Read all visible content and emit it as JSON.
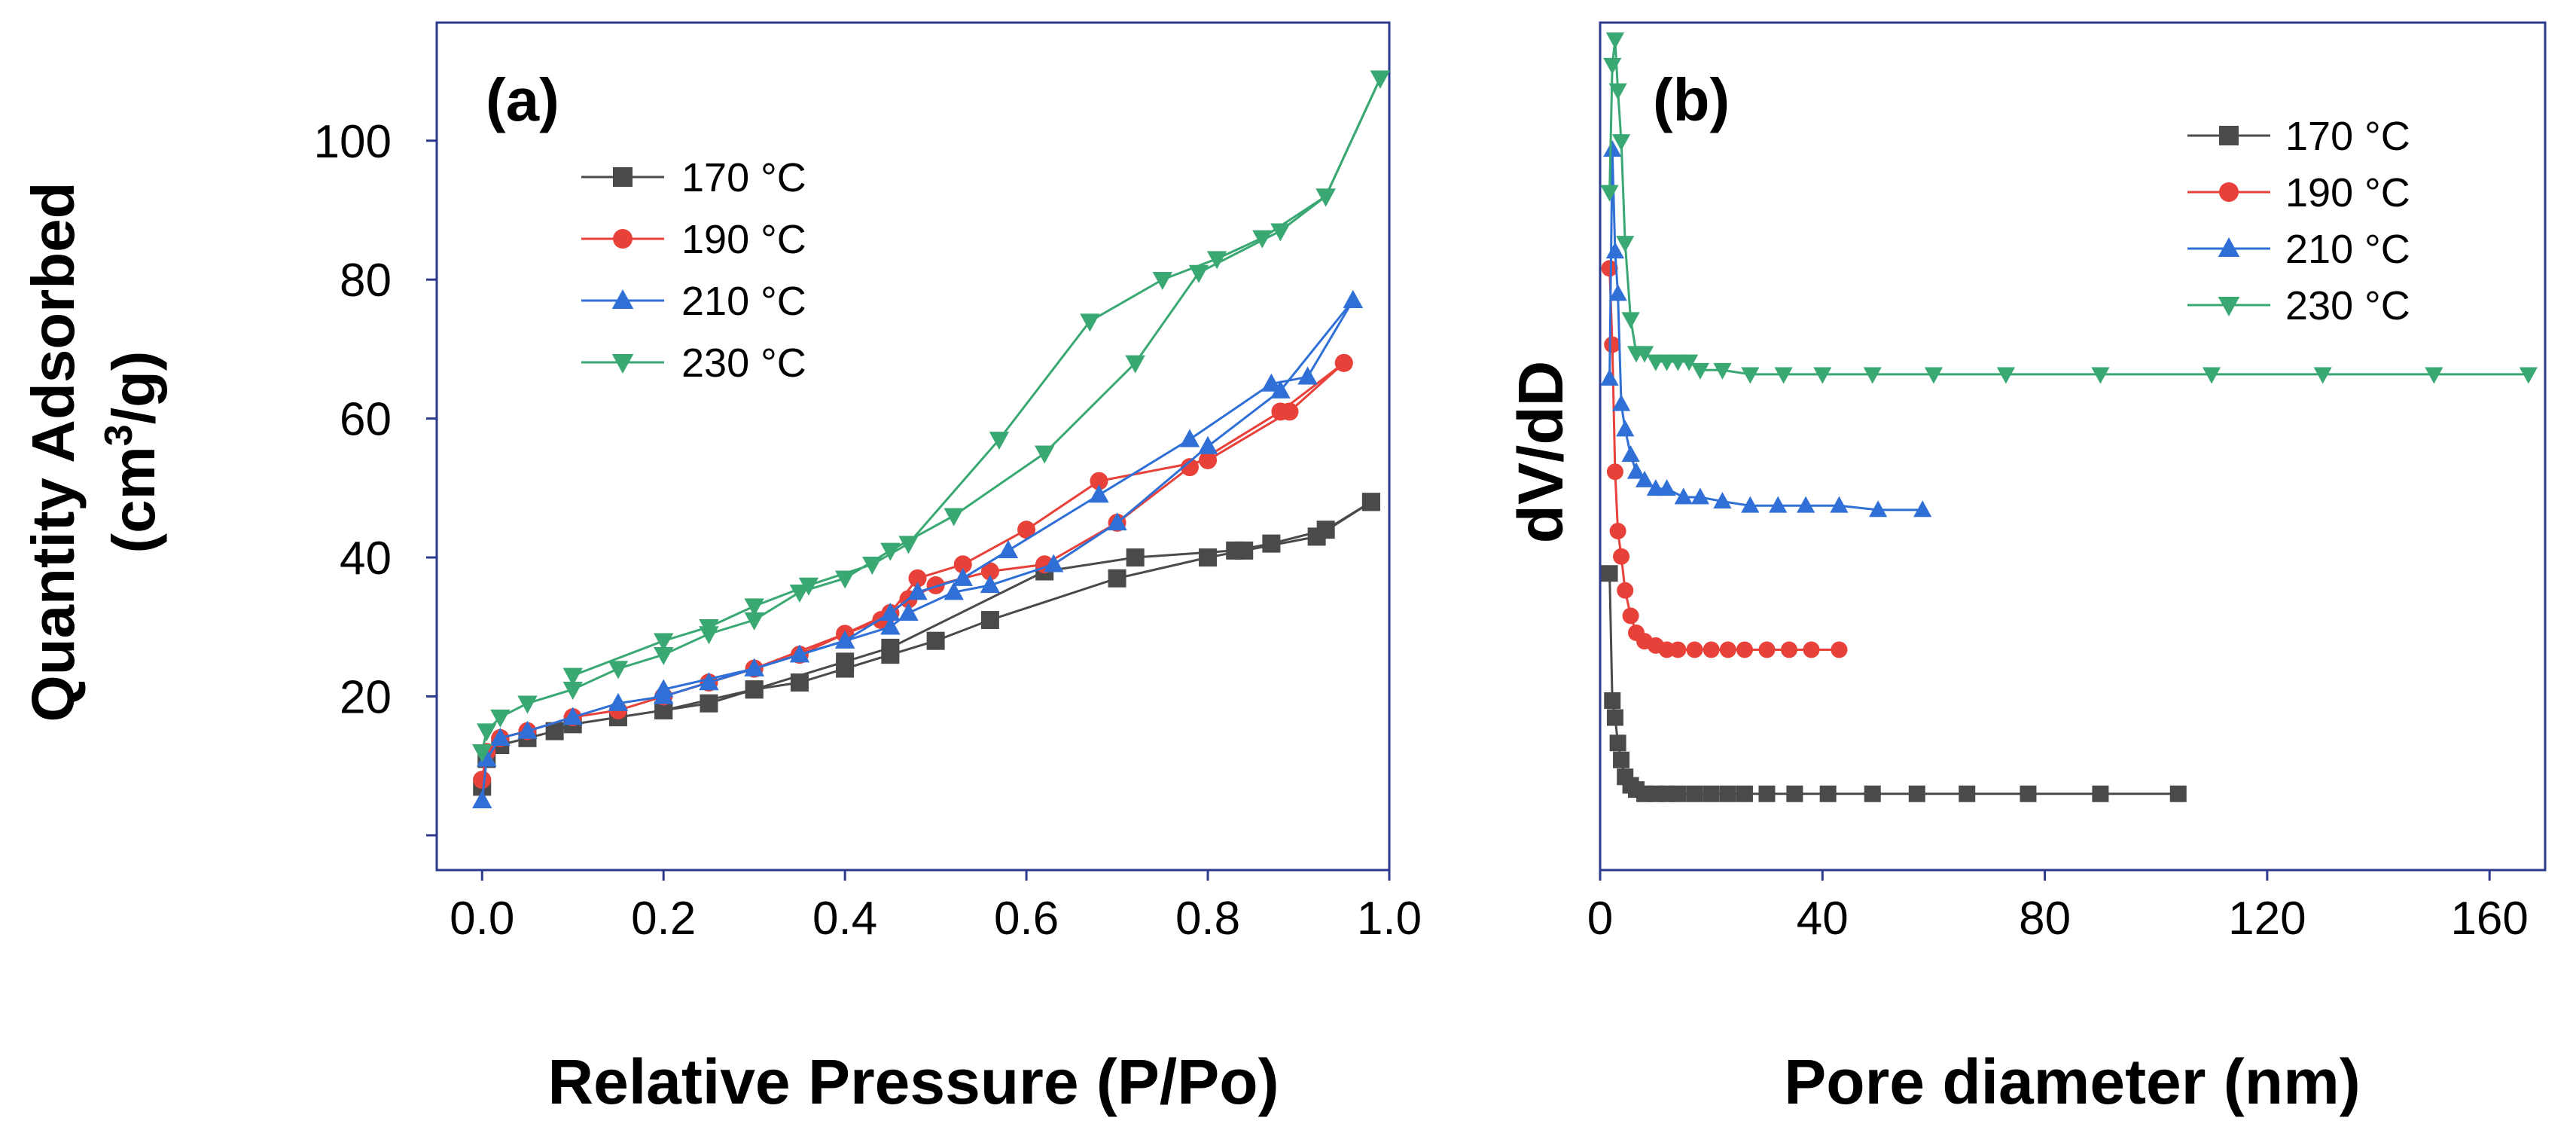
{
  "chart_data": [
    {
      "type": "line",
      "panel_label": "(a)",
      "xlabel": "Relative Pressure (P/Po)",
      "ylabel_line1": "Quantity Adsorbed",
      "ylabel_line2_base": "(cm",
      "ylabel_line2_sup": "3",
      "ylabel_line2_tail": "/g)",
      "xlim": [
        -0.05,
        1.0
      ],
      "ylim": [
        -5,
        117
      ],
      "xticks": [
        0.0,
        0.2,
        0.4,
        0.6,
        0.8,
        1.0
      ],
      "xtick_labels": [
        "0.0",
        "0.2",
        "0.4",
        "0.6",
        "0.8",
        "1.0"
      ],
      "yticks": [
        0,
        20,
        40,
        60,
        80,
        100
      ],
      "ytick_labels": [
        "",
        "20",
        "40",
        "60",
        "80",
        "100"
      ],
      "legend_position": "top-left",
      "series": [
        {
          "name": "170 °C",
          "color": "#4a4a4a",
          "marker": "square",
          "adsorption": [
            [
              0.0,
              7
            ],
            [
              0.005,
              11
            ],
            [
              0.02,
              13
            ],
            [
              0.05,
              14
            ],
            [
              0.08,
              15
            ],
            [
              0.1,
              16
            ],
            [
              0.15,
              17
            ],
            [
              0.2,
              18
            ],
            [
              0.25,
              19
            ],
            [
              0.3,
              21
            ],
            [
              0.35,
              22
            ],
            [
              0.4,
              24
            ],
            [
              0.45,
              26
            ],
            [
              0.5,
              28
            ],
            [
              0.56,
              31
            ],
            [
              0.7,
              37
            ],
            [
              0.8,
              40
            ],
            [
              0.84,
              41
            ],
            [
              0.92,
              43
            ],
            [
              0.98,
              48
            ]
          ],
          "desorption": [
            [
              0.98,
              48
            ],
            [
              0.93,
              44
            ],
            [
              0.87,
              42
            ],
            [
              0.83,
              41
            ],
            [
              0.72,
              40
            ],
            [
              0.62,
              38
            ],
            [
              0.45,
              27
            ],
            [
              0.4,
              25
            ],
            [
              0.3,
              21
            ],
            [
              0.2,
              18
            ]
          ]
        },
        {
          "name": "190 °C",
          "color": "#e8413a",
          "marker": "circle",
          "adsorption": [
            [
              0.0,
              8
            ],
            [
              0.005,
              12
            ],
            [
              0.02,
              14
            ],
            [
              0.05,
              15
            ],
            [
              0.1,
              17
            ],
            [
              0.15,
              18
            ],
            [
              0.2,
              20
            ],
            [
              0.25,
              22
            ],
            [
              0.3,
              24
            ],
            [
              0.35,
              26
            ],
            [
              0.4,
              29
            ],
            [
              0.44,
              31
            ],
            [
              0.47,
              34
            ],
            [
              0.5,
              36
            ],
            [
              0.56,
              38
            ],
            [
              0.62,
              39
            ],
            [
              0.7,
              45
            ],
            [
              0.78,
              53
            ],
            [
              0.88,
              61
            ],
            [
              0.95,
              68
            ]
          ],
          "desorption": [
            [
              0.95,
              68
            ],
            [
              0.89,
              61
            ],
            [
              0.8,
              54
            ],
            [
              0.68,
              51
            ],
            [
              0.6,
              44
            ],
            [
              0.53,
              39
            ],
            [
              0.48,
              37
            ],
            [
              0.45,
              32
            ],
            [
              0.4,
              29
            ],
            [
              0.3,
              24
            ],
            [
              0.2,
              20
            ]
          ]
        },
        {
          "name": "210 °C",
          "color": "#2f6fd6",
          "marker": "triangle-up",
          "adsorption": [
            [
              0.0,
              5
            ],
            [
              0.005,
              11
            ],
            [
              0.02,
              14
            ],
            [
              0.05,
              15
            ],
            [
              0.1,
              17
            ],
            [
              0.15,
              19
            ],
            [
              0.2,
              20
            ],
            [
              0.25,
              22
            ],
            [
              0.3,
              24
            ],
            [
              0.35,
              26
            ],
            [
              0.4,
              28
            ],
            [
              0.45,
              30
            ],
            [
              0.47,
              32
            ],
            [
              0.52,
              35
            ],
            [
              0.56,
              36
            ],
            [
              0.63,
              39
            ],
            [
              0.7,
              45
            ],
            [
              0.8,
              56
            ],
            [
              0.88,
              64
            ],
            [
              0.96,
              77
            ]
          ],
          "desorption": [
            [
              0.96,
              77
            ],
            [
              0.91,
              66
            ],
            [
              0.87,
              65
            ],
            [
              0.78,
              57
            ],
            [
              0.68,
              49
            ],
            [
              0.58,
              41
            ],
            [
              0.53,
              37
            ],
            [
              0.48,
              35
            ],
            [
              0.45,
              32
            ],
            [
              0.4,
              28
            ],
            [
              0.3,
              24
            ],
            [
              0.2,
              21
            ]
          ]
        },
        {
          "name": "230 °C",
          "color": "#3aa872",
          "marker": "triangle-down",
          "adsorption": [
            [
              0.0,
              12
            ],
            [
              0.005,
              15
            ],
            [
              0.02,
              17
            ],
            [
              0.05,
              19
            ],
            [
              0.1,
              21
            ],
            [
              0.15,
              24
            ],
            [
              0.2,
              26
            ],
            [
              0.25,
              29
            ],
            [
              0.3,
              31
            ],
            [
              0.35,
              35
            ],
            [
              0.4,
              37
            ],
            [
              0.45,
              41
            ],
            [
              0.52,
              46
            ],
            [
              0.62,
              55
            ],
            [
              0.72,
              68
            ],
            [
              0.79,
              81
            ],
            [
              0.88,
              87
            ],
            [
              0.93,
              92
            ],
            [
              0.99,
              109
            ]
          ],
          "desorption": [
            [
              0.99,
              109
            ],
            [
              0.93,
              92
            ],
            [
              0.86,
              86
            ],
            [
              0.81,
              83
            ],
            [
              0.75,
              80
            ],
            [
              0.67,
              74
            ],
            [
              0.57,
              57
            ],
            [
              0.47,
              42
            ],
            [
              0.43,
              39
            ],
            [
              0.36,
              36
            ],
            [
              0.3,
              33
            ],
            [
              0.25,
              30
            ],
            [
              0.2,
              28
            ],
            [
              0.1,
              23
            ]
          ]
        }
      ]
    },
    {
      "type": "line",
      "panel_label": "(b)",
      "xlabel": "Pore diameter (nm)",
      "ylabel": "dV/dD",
      "xlim": [
        0,
        170
      ],
      "ylim": [
        0,
        100
      ],
      "xticks": [
        0,
        40,
        80,
        120,
        160
      ],
      "xtick_labels": [
        "0",
        "40",
        "80",
        "120",
        "160"
      ],
      "legend_position": "top-right",
      "series": [
        {
          "name": "170 °C",
          "color": "#4a4a4a",
          "marker": "square",
          "points": [
            [
              1.7,
              35
            ],
            [
              2.2,
              20
            ],
            [
              2.7,
              18
            ],
            [
              3.2,
              15
            ],
            [
              3.8,
              13
            ],
            [
              4.5,
              11
            ],
            [
              5.5,
              10
            ],
            [
              6.5,
              9.5
            ],
            [
              8,
              9
            ],
            [
              10,
              9
            ],
            [
              12,
              9
            ],
            [
              14,
              9
            ],
            [
              17,
              9
            ],
            [
              20,
              9
            ],
            [
              23,
              9
            ],
            [
              26,
              9
            ],
            [
              30,
              9
            ],
            [
              35,
              9
            ],
            [
              41,
              9
            ],
            [
              49,
              9
            ],
            [
              57,
              9
            ],
            [
              66,
              9
            ],
            [
              77,
              9
            ],
            [
              90,
              9
            ],
            [
              104,
              9
            ]
          ]
        },
        {
          "name": "190 °C",
          "color": "#e8413a",
          "marker": "circle",
          "points": [
            [
              1.7,
              71
            ],
            [
              2.2,
              62
            ],
            [
              2.7,
              47
            ],
            [
              3.2,
              40
            ],
            [
              3.8,
              37
            ],
            [
              4.5,
              33
            ],
            [
              5.5,
              30
            ],
            [
              6.5,
              28
            ],
            [
              8,
              27
            ],
            [
              10,
              26.5
            ],
            [
              12,
              26
            ],
            [
              14,
              26
            ],
            [
              17,
              26
            ],
            [
              20,
              26
            ],
            [
              23,
              26
            ],
            [
              26,
              26
            ],
            [
              30,
              26
            ],
            [
              34,
              26
            ],
            [
              38,
              26
            ],
            [
              43,
              26
            ]
          ]
        },
        {
          "name": "210 °C",
          "color": "#2f6fd6",
          "marker": "triangle-up",
          "points": [
            [
              1.7,
              58
            ],
            [
              2.2,
              85
            ],
            [
              2.7,
              73
            ],
            [
              3.2,
              68
            ],
            [
              3.8,
              55
            ],
            [
              4.5,
              52
            ],
            [
              5.5,
              49
            ],
            [
              6.5,
              47
            ],
            [
              8,
              46
            ],
            [
              10,
              45
            ],
            [
              12,
              45
            ],
            [
              15,
              44
            ],
            [
              18,
              44
            ],
            [
              22,
              43.5
            ],
            [
              27,
              43
            ],
            [
              32,
              43
            ],
            [
              37,
              43
            ],
            [
              43,
              43
            ],
            [
              50,
              42.5
            ],
            [
              58,
              42.5
            ]
          ]
        },
        {
          "name": "230 °C",
          "color": "#3aa872",
          "marker": "triangle-down",
          "points": [
            [
              1.7,
              80
            ],
            [
              2.2,
              95
            ],
            [
              2.7,
              98
            ],
            [
              3.2,
              92
            ],
            [
              3.8,
              86
            ],
            [
              4.5,
              74
            ],
            [
              5.5,
              65
            ],
            [
              6.5,
              61
            ],
            [
              8,
              61
            ],
            [
              10,
              60
            ],
            [
              12,
              60
            ],
            [
              14,
              60
            ],
            [
              16,
              60
            ],
            [
              18,
              59
            ],
            [
              22,
              59
            ],
            [
              27,
              58.5
            ],
            [
              33,
              58.5
            ],
            [
              40,
              58.5
            ],
            [
              49,
              58.5
            ],
            [
              60,
              58.5
            ],
            [
              73,
              58.5
            ],
            [
              90,
              58.5
            ],
            [
              110,
              58.5
            ],
            [
              130,
              58.5
            ],
            [
              150,
              58.5
            ],
            [
              167,
              58.5
            ]
          ]
        }
      ]
    }
  ]
}
